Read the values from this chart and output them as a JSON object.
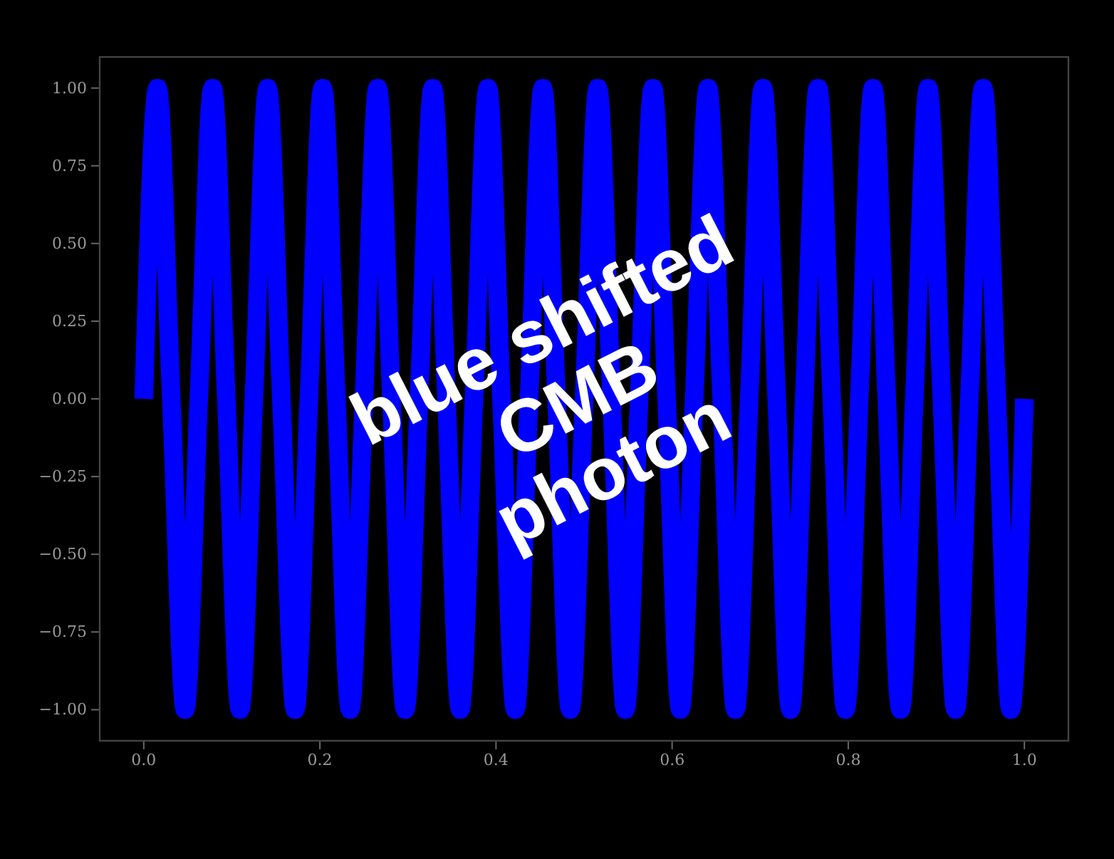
{
  "chart_data": {
    "type": "line",
    "x": [
      0,
      0.015625,
      0.03125,
      0.046875,
      0.0625,
      0.078125,
      0.09375,
      0.109375,
      0.125,
      0.140625,
      0.15625,
      0.171875,
      0.1875,
      0.203125,
      0.21875,
      0.234375,
      0.25,
      0.265625,
      0.28125,
      0.296875,
      0.3125,
      0.328125,
      0.34375,
      0.359375,
      0.375,
      0.390625,
      0.40625,
      0.421875,
      0.4375,
      0.453125,
      0.46875,
      0.484375,
      0.5,
      0.515625,
      0.53125,
      0.546875,
      0.5625,
      0.578125,
      0.59375,
      0.609375,
      0.625,
      0.640625,
      0.65625,
      0.671875,
      0.6875,
      0.703125,
      0.71875,
      0.734375,
      0.75,
      0.765625,
      0.78125,
      0.796875,
      0.8125,
      0.828125,
      0.84375,
      0.859375,
      0.875,
      0.890625,
      0.90625,
      0.921875,
      0.9375,
      0.953125,
      0.96875,
      0.984375,
      1
    ],
    "series": [
      {
        "color": "#0000ff",
        "values": [
          0,
          1,
          0,
          -1,
          0,
          1,
          0,
          -1,
          0,
          1,
          0,
          -1,
          0,
          1,
          0,
          -1,
          0,
          1,
          0,
          -1,
          0,
          1,
          0,
          -1,
          0,
          1,
          0,
          -1,
          0,
          1,
          0,
          -1,
          0,
          1,
          0,
          -1,
          0,
          1,
          0,
          -1,
          0,
          1,
          0,
          -1,
          0,
          1,
          0,
          -1,
          0,
          1,
          0,
          -1,
          0,
          1,
          0,
          -1,
          0,
          1,
          0,
          -1,
          0,
          1,
          0,
          -1,
          0
        ]
      }
    ],
    "xlim": [
      -0.05,
      1.05
    ],
    "ylim": [
      -1.1,
      1.1
    ],
    "xticks": [
      {
        "value": 0,
        "label": "0.0"
      },
      {
        "value": 0.2,
        "label": "0.2"
      },
      {
        "value": 0.4,
        "label": "0.4"
      },
      {
        "value": 0.6,
        "label": "0.6"
      },
      {
        "value": 0.8,
        "label": "0.8"
      },
      {
        "value": 1,
        "label": "1.0"
      }
    ],
    "yticks": [
      {
        "value": -1,
        "label": "−1.00"
      },
      {
        "value": -0.75,
        "label": "−0.75"
      },
      {
        "value": -0.5,
        "label": "−0.50"
      },
      {
        "value": -0.25,
        "label": "−0.25"
      },
      {
        "value": 0,
        "label": "0.00"
      },
      {
        "value": 0.25,
        "label": "0.25"
      },
      {
        "value": 0.5,
        "label": "0.50"
      },
      {
        "value": 0.75,
        "label": "0.75"
      },
      {
        "value": 1,
        "label": "1.00"
      }
    ],
    "annotations": [
      "blue shifted\nCMB\nphoton"
    ]
  }
}
